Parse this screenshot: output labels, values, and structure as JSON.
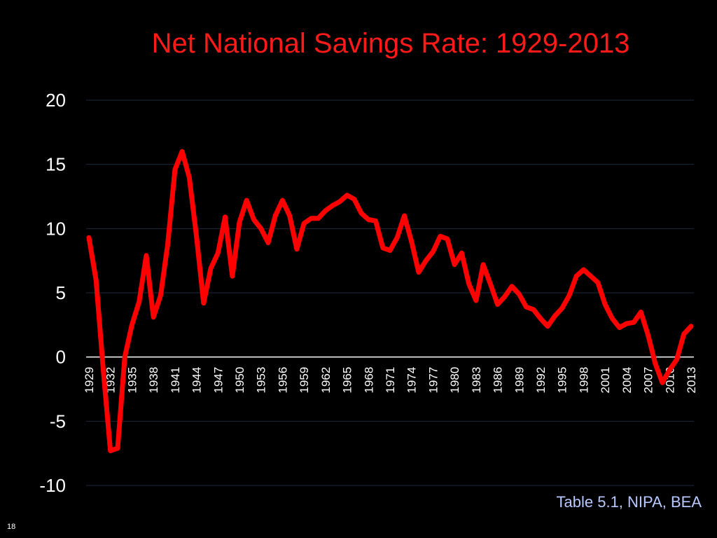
{
  "slide": {
    "title": "Net National Savings Rate: 1929-2013",
    "source": "Table 5.1, NIPA, BEA",
    "page_number": "18"
  },
  "colors": {
    "background": "#000000",
    "title": "#ff1a1a",
    "line": "#ff0000",
    "text": "#ffffff",
    "gridline": "#1c2a3c",
    "source": "#b8c8ff"
  },
  "chart_data": {
    "type": "line",
    "title": "Net National Savings Rate: 1929-2013",
    "xlabel": "",
    "ylabel": "",
    "ylim": [
      -10,
      20
    ],
    "yticks": [
      20,
      15,
      10,
      5,
      0,
      -5,
      -10
    ],
    "xlim": [
      1929,
      2013
    ],
    "xticks": [
      1929,
      1932,
      1935,
      1938,
      1941,
      1944,
      1947,
      1950,
      1953,
      1956,
      1959,
      1962,
      1965,
      1968,
      1971,
      1974,
      1977,
      1980,
      1983,
      1986,
      1989,
      1992,
      1995,
      1998,
      2001,
      2004,
      2007,
      2010,
      2013
    ],
    "grid": true,
    "legend": "none",
    "series": [
      {
        "x": [
          1929,
          1930,
          1931,
          1932,
          1933,
          1934,
          1935,
          1936,
          1937,
          1938,
          1939,
          1940,
          1941,
          1942,
          1943,
          1944,
          1945,
          1946,
          1947,
          1948,
          1949,
          1950,
          1951,
          1952,
          1953,
          1954,
          1955,
          1956,
          1957,
          1958,
          1959,
          1960,
          1961,
          1962,
          1963,
          1964,
          1965,
          1966,
          1967,
          1968,
          1969,
          1970,
          1971,
          1972,
          1973,
          1974,
          1975,
          1976,
          1977,
          1978,
          1979,
          1980,
          1981,
          1982,
          1983,
          1984,
          1985,
          1986,
          1987,
          1988,
          1989,
          1990,
          1991,
          1992,
          1993,
          1994,
          1995,
          1996,
          1997,
          1998,
          1999,
          2000,
          2001,
          2002,
          2003,
          2004,
          2005,
          2006,
          2007,
          2008,
          2009,
          2010,
          2011,
          2012,
          2013
        ],
        "values": [
          9.3,
          6.0,
          -1.0,
          -7.3,
          -7.1,
          0.0,
          2.5,
          4.3,
          7.9,
          3.1,
          4.8,
          8.8,
          14.6,
          16.0,
          14.0,
          9.4,
          4.2,
          6.9,
          8.1,
          10.9,
          6.3,
          10.5,
          12.2,
          10.7,
          10.0,
          8.9,
          11.0,
          12.2,
          11.0,
          8.4,
          10.4,
          10.8,
          10.8,
          11.4,
          11.8,
          12.1,
          12.6,
          12.3,
          11.2,
          10.7,
          10.6,
          8.5,
          8.3,
          9.3,
          11.0,
          9.0,
          6.6,
          7.5,
          8.2,
          9.4,
          9.2,
          7.2,
          8.1,
          5.7,
          4.4,
          7.2,
          5.7,
          4.1,
          4.7,
          5.5,
          4.9,
          3.9,
          3.7,
          3.0,
          2.4,
          3.2,
          3.8,
          4.8,
          6.3,
          6.8,
          6.3,
          5.8,
          4.1,
          3.0,
          2.3,
          2.6,
          2.7,
          3.5,
          1.7,
          -0.5,
          -2.0,
          -1.0,
          -0.2,
          1.8,
          2.4
        ]
      }
    ]
  }
}
